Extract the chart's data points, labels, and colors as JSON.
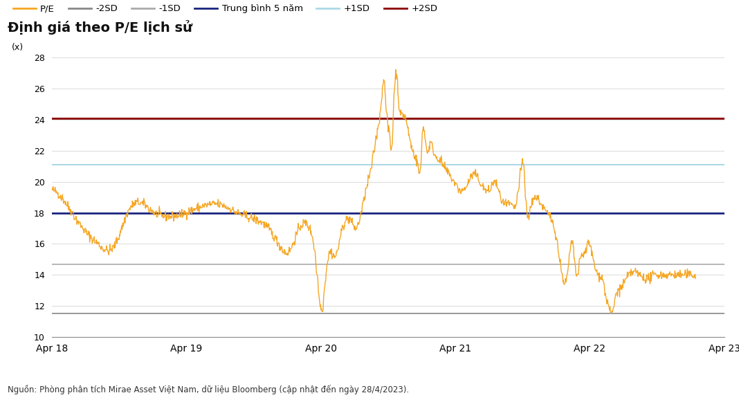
{
  "title": "Định giá theo P/E lịch sử",
  "ylabel": "(x)",
  "footnote": "Nguồn: Phòng phân tích Mirae Asset Việt Nam, dữ liệu Bloomberg (cập nhật đến ngày 28/4/2023).",
  "ylim": [
    10,
    28
  ],
  "yticks": [
    10,
    12,
    14,
    16,
    18,
    20,
    22,
    24,
    26,
    28
  ],
  "line_minus2sd": 11.5,
  "line_minus1sd": 14.7,
  "line_mean": 18.0,
  "line_plus1sd": 21.1,
  "line_plus2sd": 24.1,
  "color_pe": "#F5A623",
  "color_minus2sd": "#888888",
  "color_minus1sd": "#AAAAAA",
  "color_mean": "#1a237e",
  "color_plus1sd": "#ADD8E6",
  "color_plus2sd": "#8B0000",
  "bg_title": "#E0E0E0",
  "bg_chart": "#FFFFFF",
  "legend_labels": [
    "P/E",
    "-2SD",
    "-1SD",
    "Trung bình 5 năm",
    "+1SD",
    "+2SD"
  ],
  "x_tick_labels": [
    "Apr 18",
    "Apr 19",
    "Apr 20",
    "Apr 21",
    "Apr 22",
    "Apr 23"
  ]
}
